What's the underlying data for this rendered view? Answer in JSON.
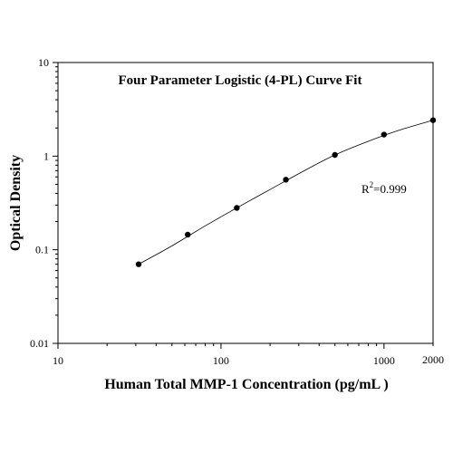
{
  "chart_data": {
    "type": "scatter",
    "title": "Four Parameter Logistic (4-PL) Curve Fit",
    "xlabel": "Human Total MMP-1 Concentration (pg/mL )",
    "ylabel": "Optical Density",
    "x_scale": "log",
    "y_scale": "log",
    "xlim": [
      10,
      2000
    ],
    "ylim": [
      0.01,
      10
    ],
    "x_ticks": [
      {
        "value": 10,
        "label": "10"
      },
      {
        "value": 100,
        "label": "100"
      },
      {
        "value": 1000,
        "label": "1000"
      },
      {
        "value": 2000,
        "label": "2000"
      }
    ],
    "y_ticks": [
      {
        "value": 0.01,
        "label": "0.01"
      },
      {
        "value": 0.1,
        "label": "0.1"
      },
      {
        "value": 1,
        "label": "1"
      },
      {
        "value": 10,
        "label": "10"
      }
    ],
    "series": [
      {
        "x": [
          31.25,
          62.5,
          125,
          250,
          500,
          1000,
          2000
        ],
        "y": [
          0.07,
          0.145,
          0.28,
          0.56,
          1.03,
          1.7,
          2.42
        ]
      }
    ],
    "fit_curve": {
      "model": "4-PL",
      "x": [
        31.25,
        50,
        80,
        125,
        200,
        320,
        500,
        800,
        1250,
        2000
      ],
      "y": [
        0.07,
        0.11,
        0.18,
        0.28,
        0.44,
        0.69,
        1.03,
        1.44,
        1.9,
        2.42
      ]
    },
    "annotations": [
      {
        "text_main": "R",
        "text_sup": "2",
        "text_rest": "=0.999"
      }
    ],
    "grid": false,
    "colors": {
      "points": "#000000",
      "curve": "#000000",
      "axes": "#000000"
    }
  }
}
